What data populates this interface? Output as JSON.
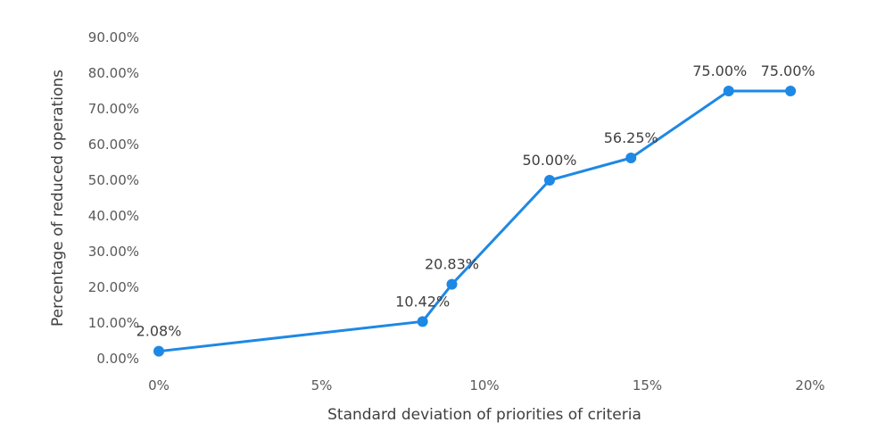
{
  "chart_data": {
    "type": "line",
    "title": "",
    "xlabel": "Standard deviation of priorities of criteria",
    "ylabel": "Percentage of reduced operations",
    "x_ticks": [
      "0%",
      "5%",
      "10%",
      "15%",
      "20%"
    ],
    "y_ticks": [
      "0.00%",
      "10.00%",
      "20.00%",
      "30.00%",
      "40.00%",
      "50.00%",
      "60.00%",
      "70.00%",
      "80.00%",
      "90.00%"
    ],
    "xlim": [
      0,
      20
    ],
    "ylim": [
      0,
      90
    ],
    "grid": false,
    "legend": "none",
    "series": [
      {
        "color": "#1e88e5",
        "points": [
          {
            "x": 0.0,
            "y": 2.08,
            "label": "2.08%"
          },
          {
            "x": 8.1,
            "y": 10.42,
            "label": "10.42%"
          },
          {
            "x": 9.0,
            "y": 20.83,
            "label": "20.83%"
          },
          {
            "x": 12.0,
            "y": 50.0,
            "label": "50.00%"
          },
          {
            "x": 14.5,
            "y": 56.25,
            "label": "56.25%"
          },
          {
            "x": 17.5,
            "y": 75.0,
            "label": "75.00%"
          },
          {
            "x": 19.4,
            "y": 75.0,
            "label": "75.00%"
          }
        ]
      }
    ]
  }
}
